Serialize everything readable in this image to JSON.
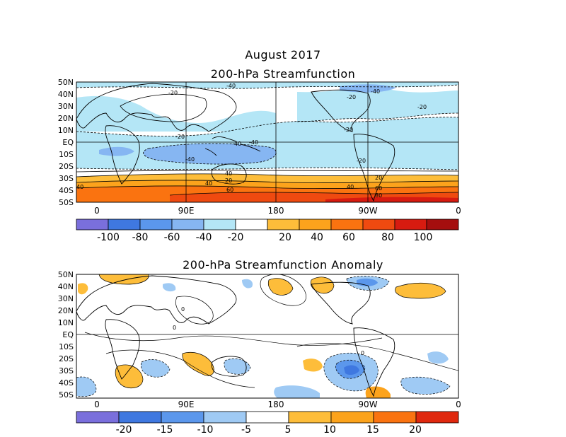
{
  "header": {
    "month_title": "August 2017",
    "panel1_title": "200-hPa Streamfunction",
    "panel2_title": "200-hPa Streamfunction Anomaly"
  },
  "map": {
    "lat_labels": [
      "50N",
      "40N",
      "30N",
      "20N",
      "10N",
      "EQ",
      "10S",
      "20S",
      "30S",
      "40S",
      "50S"
    ],
    "lon_labels": [
      "0",
      "90E",
      "180",
      "90W",
      "0"
    ]
  },
  "panel1": {
    "colorbar_labels": [
      "-100",
      "-80",
      "-60",
      "-40",
      "-20",
      "20",
      "40",
      "60",
      "80",
      "100"
    ],
    "colorbar_colors": [
      "#7a6fdc",
      "#3f78e0",
      "#5b97ec",
      "#86b6f2",
      "#b4e6f6",
      "#ffffff",
      "#fdbd3a",
      "#fca31c",
      "#fa7310",
      "#ef4a10",
      "#d71b10",
      "#a50e0e"
    ],
    "contour_labels": [
      "-40",
      "-20",
      "-40",
      "-20",
      "-20",
      "-40",
      "-40",
      "-20",
      "-20",
      "-40",
      "-20",
      "20",
      "40",
      "20",
      "60",
      "40",
      "40",
      "60",
      "80",
      "40"
    ]
  },
  "panel2": {
    "colorbar_labels": [
      "-20",
      "-15",
      "-10",
      "-5",
      "5",
      "10",
      "15",
      "20"
    ],
    "colorbar_colors": [
      "#7a6fdc",
      "#3f78e0",
      "#5b97ec",
      "#9fcaf4",
      "#ffffff",
      "#fdbd3a",
      "#fca31c",
      "#fa7310",
      "#e0280e"
    ],
    "contour_labels": [
      "0",
      "0",
      "0"
    ]
  }
}
